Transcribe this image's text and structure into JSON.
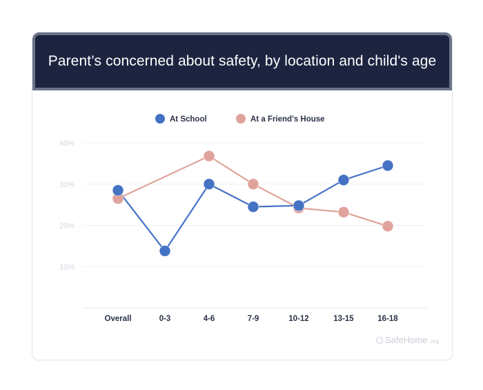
{
  "header": {
    "title": "Parent’s concerned about safety, by location and child's age"
  },
  "legend": [
    {
      "label": "At School",
      "color": "#4472c4"
    },
    {
      "label": "At a Friend’s House",
      "color": "#e0a39b"
    }
  ],
  "watermark": {
    "brand": "SafeHome",
    "suffix": ".org",
    "icon": "safehome-logo-icon"
  },
  "chart_data": {
    "type": "line",
    "title": "Parent’s concerned about safety, by location and child's age",
    "categories": [
      "Overall",
      "0-3",
      "4-6",
      "7-9",
      "10-12",
      "13-15",
      "16-18"
    ],
    "ylim": [
      0,
      40
    ],
    "yticks": [
      "10%",
      "20%",
      "30%",
      "40%"
    ],
    "ytick_values": [
      10,
      20,
      30,
      40
    ],
    "grid": true,
    "legend_position": "top-center",
    "series": [
      {
        "name": "At School",
        "color": "#4472c4",
        "values": [
          28.5,
          13.8,
          30.0,
          24.5,
          24.8,
          31.0,
          34.5
        ]
      },
      {
        "name": "At a Friend’s House",
        "color": "#e0a39b",
        "values": [
          26.5,
          null,
          36.8,
          30.0,
          24.2,
          23.2,
          19.8
        ]
      }
    ]
  }
}
